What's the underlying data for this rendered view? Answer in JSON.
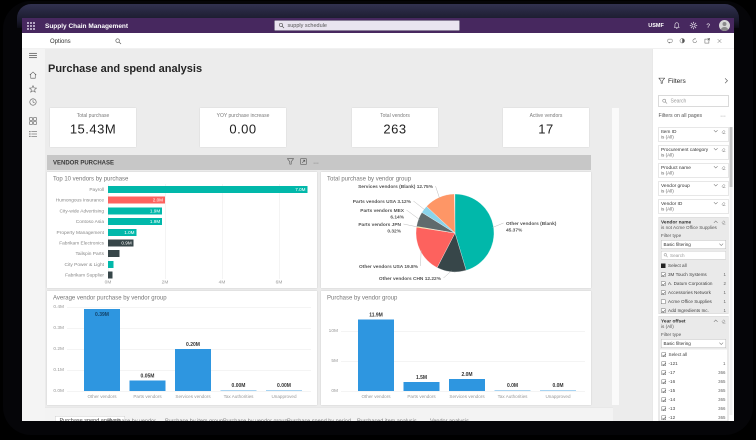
{
  "titlebar": {
    "app_title": "Supply Chain Management",
    "search_value": "supply schedule",
    "company": "USMF"
  },
  "toolbar": {
    "options_label": "Options"
  },
  "page": {
    "title": "Purchase and spend analysis",
    "section_title": "VENDOR PURCHASE"
  },
  "kpis": [
    {
      "label": "Total purchase",
      "value": "15.43M"
    },
    {
      "label": "YOY purchase increase",
      "value": "0.00"
    },
    {
      "label": "Total vendors",
      "value": "263"
    },
    {
      "label": "Active vendors",
      "value": "17"
    }
  ],
  "chart_data": [
    {
      "type": "bar",
      "orientation": "horizontal",
      "title": "Top 10 vendors by purchase",
      "categories": [
        "Payroll",
        "Humongous Insurance",
        "City-wide Advertising",
        "Contoso Asia",
        "Property Management",
        "Fabrikam Electronics",
        "Tailspin Parts",
        "City Power & Light",
        "Fabrikam Supplier"
      ],
      "values": [
        7.0,
        2.0,
        1.9,
        1.9,
        1.0,
        0.9,
        0.4,
        0.2,
        0.15
      ],
      "labels": [
        "7.0M",
        "2.0M",
        "1.9M",
        "1.9M",
        "1.0M",
        "0.9M",
        "",
        "",
        ""
      ],
      "colors": [
        "#01B8AA",
        "#FD625E",
        "#01B8AA",
        "#01B8AA",
        "#01B8AA",
        "#374649",
        "#374649",
        "#01B8AA",
        "#374649"
      ],
      "xlim": [
        0,
        7
      ],
      "xticks": [
        "0M",
        "2M",
        "4M",
        "6M"
      ]
    },
    {
      "type": "pie",
      "title": "Total purchase by vendor group",
      "slices": [
        {
          "label": "Other vendors (Blank)",
          "pct": 45.37,
          "color": "#01B8AA"
        },
        {
          "label": "Other vendors CHN",
          "pct": 12.22,
          "color": "#374649"
        },
        {
          "label": "Other vendors USA",
          "pct": 19.8,
          "color": "#FD625E"
        },
        {
          "label": "Parts vendors JPN",
          "pct": 0.32,
          "color": "#F2C80F"
        },
        {
          "label": "Parts vendors MEX",
          "pct": 6.14,
          "color": "#5F6B6D"
        },
        {
          "label": "Parts vendors USA",
          "pct": 3.12,
          "color": "#8AD4EB"
        },
        {
          "label": "Services vendors (Blank)",
          "pct": 12.75,
          "color": "#FE9666"
        }
      ]
    },
    {
      "type": "bar",
      "title": "Average vendor purchase by vendor group",
      "categories": [
        "Other vendors",
        "Parts vendors",
        "Services vendors",
        "Tax Authorities",
        "Unapproved"
      ],
      "values": [
        0.39,
        0.05,
        0.2,
        0.0,
        0.0
      ],
      "labels": [
        "0.39M",
        "0.05M",
        "0.20M",
        "0.00M",
        "0.00M"
      ],
      "yticks": [
        "0.4M",
        "0.3M",
        "0.2M",
        "0.1M",
        "0.0M"
      ],
      "ylim": [
        0,
        0.4
      ],
      "color": "#2E96E0"
    },
    {
      "type": "bar",
      "title": "Purchase by vendor group",
      "categories": [
        "Other vendors",
        "Parts vendors",
        "Services vendors",
        "Tax Authorities",
        "Unapproved"
      ],
      "values": [
        11.9,
        1.5,
        2.0,
        0.0,
        0.0
      ],
      "labels": [
        "11.9M",
        "1.5M",
        "2.0M",
        "0.0M",
        "0.0M"
      ],
      "yticks": [
        "10M",
        "5M",
        "0M"
      ],
      "ylim": [
        0,
        14
      ],
      "color": "#2E96E0"
    }
  ],
  "bottom_tabs": [
    "Purchase spend analysis",
    "Purchase by vendor",
    "Purchase by item group",
    "Purchase by vendor group",
    "Purchase spend by period",
    "Purchased item analysis",
    "Vendor analysis"
  ],
  "filters_panel": {
    "title": "Filters",
    "search_placeholder": "Search",
    "section_label": "Filters on all pages",
    "cards": [
      {
        "name": "Item ID",
        "condition": "is (All)"
      },
      {
        "name": "Procurement category",
        "condition": "is (All)"
      },
      {
        "name": "Product name",
        "condition": "is (All)"
      },
      {
        "name": "Vendor group",
        "condition": "is (All)"
      },
      {
        "name": "Vendor ID",
        "condition": "is (All)"
      }
    ],
    "vendor_name_card": {
      "name": "Vendor name",
      "condition": "is not Acme Office Supplies",
      "filter_type_label": "Filter type",
      "filter_type": "Basic filtering",
      "search_placeholder": "Search",
      "select_all": "Select all",
      "items": [
        {
          "label": "3M Touch Systems",
          "count": "1",
          "checked": true
        },
        {
          "label": "A. Datum Corporation",
          "count": "2",
          "checked": true
        },
        {
          "label": "Accessories Network",
          "count": "1",
          "checked": true
        },
        {
          "label": "Acme Office Supplies",
          "count": "1",
          "checked": false
        },
        {
          "label": "Add Ingredients Inc.",
          "count": "1",
          "checked": true
        },
        {
          "label": "Adventure Works Cy",
          "count": "1",
          "checked": true
        }
      ]
    },
    "year_offset_card": {
      "name": "Year offset",
      "condition": "is (All)",
      "filter_type_label": "Filter type",
      "filter_type": "Basic filtering",
      "select_all": "Select all",
      "items": [
        {
          "label": "-121",
          "count": "1",
          "checked": true
        },
        {
          "label": "-17",
          "count": "366",
          "checked": true
        },
        {
          "label": "-16",
          "count": "365",
          "checked": true
        },
        {
          "label": "-15",
          "count": "365",
          "checked": true
        },
        {
          "label": "-14",
          "count": "365",
          "checked": true
        },
        {
          "label": "-13",
          "count": "366",
          "checked": true
        },
        {
          "label": "-12",
          "count": "365",
          "checked": true
        }
      ]
    }
  }
}
